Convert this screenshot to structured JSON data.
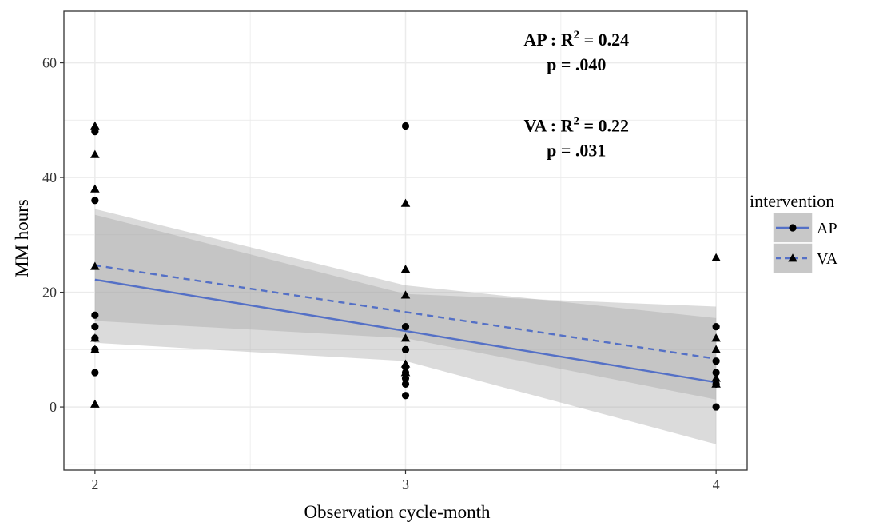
{
  "chart_data": {
    "type": "scatter",
    "xlabel": "Observation cycle-month",
    "ylabel": "MM hours",
    "xlim": [
      1.9,
      4.1
    ],
    "ylim": [
      -11,
      69
    ],
    "x_ticks": [
      2,
      3,
      4
    ],
    "y_ticks": [
      0,
      20,
      40,
      60
    ],
    "grid": true,
    "legend": {
      "title": "intervention",
      "placement": "right",
      "entries": [
        {
          "label": "AP",
          "marker": "circle",
          "line": "solid"
        },
        {
          "label": "VA",
          "marker": "triangle",
          "line": "dashed"
        }
      ]
    },
    "colors": {
      "line": "#5470c6",
      "ribbon": "#a6a6a6",
      "panel_bg": "#ffffff",
      "grid": "#ebebeb",
      "points": "#000000"
    },
    "annotations": [
      {
        "group": "AP",
        "label": "AP : R",
        "sup": "2",
        "value": " = 0.24",
        "p": "p = .040",
        "x": 3.55,
        "y": 63
      },
      {
        "group": "VA",
        "label": "VA : R",
        "sup": "2",
        "value": " = 0.22",
        "p": "p = .031",
        "x": 3.55,
        "y": 48
      }
    ],
    "series": [
      {
        "name": "AP",
        "marker": "circle",
        "points": [
          {
            "x": 2,
            "y": 48
          },
          {
            "x": 2,
            "y": 36
          },
          {
            "x": 2,
            "y": 16
          },
          {
            "x": 2,
            "y": 14
          },
          {
            "x": 2,
            "y": 12
          },
          {
            "x": 2,
            "y": 10
          },
          {
            "x": 2,
            "y": 6
          },
          {
            "x": 3,
            "y": 49
          },
          {
            "x": 3,
            "y": 14
          },
          {
            "x": 3,
            "y": 10
          },
          {
            "x": 3,
            "y": 7
          },
          {
            "x": 3,
            "y": 6
          },
          {
            "x": 3,
            "y": 5
          },
          {
            "x": 3,
            "y": 4
          },
          {
            "x": 3,
            "y": 2
          },
          {
            "x": 4,
            "y": 14
          },
          {
            "x": 4,
            "y": 8
          },
          {
            "x": 4,
            "y": 6
          },
          {
            "x": 4,
            "y": 4
          },
          {
            "x": 4,
            "y": 0
          }
        ],
        "fit": {
          "start": [
            2,
            22.2
          ],
          "end": [
            4,
            4.3
          ]
        },
        "ci": {
          "lower": [
            [
              2,
              11.2
            ],
            [
              3,
              8.0
            ],
            [
              4,
              -6.5
            ]
          ],
          "upper": [
            [
              2,
              33.5
            ],
            [
              3,
              19.7
            ],
            [
              4,
              17.5
            ]
          ]
        }
      },
      {
        "name": "VA",
        "marker": "triangle",
        "points": [
          {
            "x": 2,
            "y": 49
          },
          {
            "x": 2,
            "y": 44
          },
          {
            "x": 2,
            "y": 38
          },
          {
            "x": 2,
            "y": 24.5
          },
          {
            "x": 2,
            "y": 12
          },
          {
            "x": 2,
            "y": 10
          },
          {
            "x": 2,
            "y": 0.5
          },
          {
            "x": 3,
            "y": 35.5
          },
          {
            "x": 3,
            "y": 24
          },
          {
            "x": 3,
            "y": 19.5
          },
          {
            "x": 3,
            "y": 12
          },
          {
            "x": 3,
            "y": 7.5
          },
          {
            "x": 3,
            "y": 6
          },
          {
            "x": 4,
            "y": 26
          },
          {
            "x": 4,
            "y": 12
          },
          {
            "x": 4,
            "y": 10
          },
          {
            "x": 4,
            "y": 5
          },
          {
            "x": 4,
            "y": 4
          }
        ],
        "fit": {
          "start": [
            2,
            24.7
          ],
          "end": [
            4,
            8.4
          ]
        },
        "ci": {
          "lower": [
            [
              2,
              15.0
            ],
            [
              3,
              12.0
            ],
            [
              4,
              1.3
            ]
          ],
          "upper": [
            [
              2,
              34.5
            ],
            [
              3,
              21.2
            ],
            [
              4,
              15.5
            ]
          ]
        }
      }
    ]
  }
}
